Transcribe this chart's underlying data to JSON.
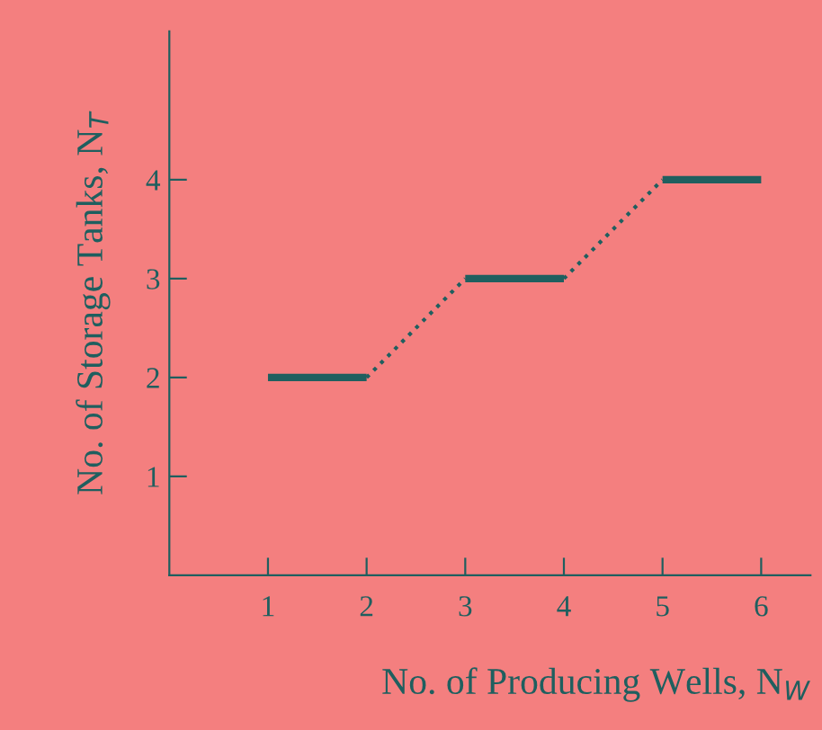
{
  "chart_data": {
    "type": "line",
    "xlabel": "No. of Producing Wells, N$_{W}$",
    "ylabel": "No. of Storage Tanks, N$_{T}$",
    "series": [
      {
        "color": "#1f5f5f",
        "line_style": "solid",
        "x": [
          1,
          2
        ],
        "values": [
          2,
          2
        ]
      },
      {
        "color": "#1f5f5f",
        "line_style": "dotted",
        "x": [
          2,
          3
        ],
        "values": [
          2,
          3
        ]
      },
      {
        "color": "#1f5f5f",
        "line_style": "solid",
        "x": [
          3,
          4
        ],
        "values": [
          3,
          3
        ]
      },
      {
        "color": "#1f5f5f",
        "line_style": "dotted",
        "x": [
          4,
          5
        ],
        "values": [
          3,
          4
        ]
      },
      {
        "color": "#1f5f5f",
        "line_style": "solid",
        "x": [
          5,
          6
        ],
        "values": [
          4,
          4
        ]
      }
    ],
    "xlim": [
      0,
      6.5
    ],
    "xticks": [
      1,
      2,
      3,
      4,
      5,
      6
    ],
    "ylim": [
      0,
      5.5
    ],
    "yticks": [
      1,
      2,
      3,
      4
    ],
    "grid": false,
    "legend": false,
    "marker": "none"
  }
}
